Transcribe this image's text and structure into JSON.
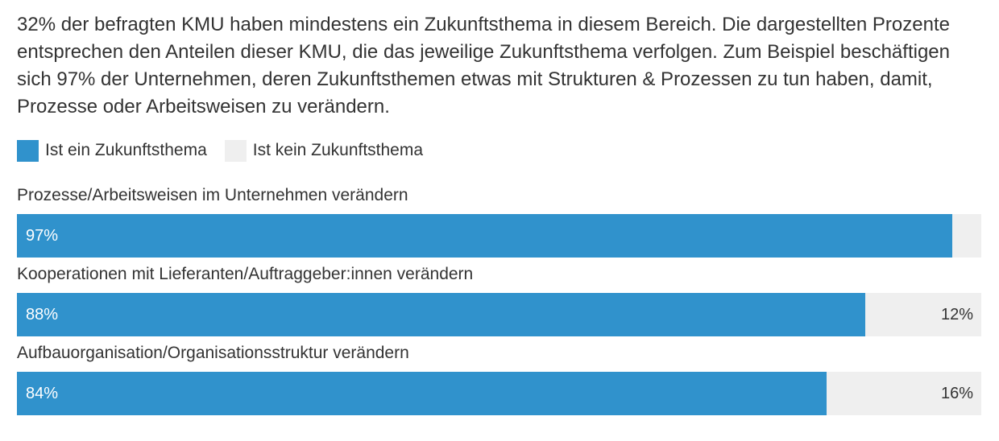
{
  "subtitle": "32% der befragten KMU haben mindestens ein Zukunftsthema in diesem Bereich. Die dargestellten Prozente entsprechen den Anteilen dieser KMU, die das jeweilige Zukunftsthema verfolgen. Zum Beispiel beschäftigen sich 97% der Unternehmen, deren Zukunftsthemen etwas mit Strukturen & Prozessen zu tun haben, damit, Prozesse oder Arbeitsweisen zu verändern.",
  "colors": {
    "yes": "#3092cc",
    "no": "#efefef",
    "text": "#333333"
  },
  "chart_data": {
    "type": "bar",
    "orientation": "horizontal",
    "stacked": true,
    "normalized_percent": true,
    "title": "",
    "subtitle": "32% der befragten KMU haben mindestens ein Zukunftsthema in diesem Bereich. Die dargestellten Prozente entsprechen den Anteilen dieser KMU, die das jeweilige Zukunftsthema verfolgen. Zum Beispiel beschäftigen sich 97% der Unternehmen, deren Zukunftsthemen etwas mit Strukturen & Prozessen zu tun haben, damit, Prozesse oder Arbeitsweisen zu verändern.",
    "xlabel": "",
    "ylabel": "",
    "xlim": [
      0,
      100
    ],
    "grid": false,
    "legend_position": "top-left",
    "categories": [
      "Prozesse/Arbeitsweisen im Unternehmen verändern",
      "Kooperationen mit Lieferanten/Auftraggeber:innen verändern",
      "Aufbauorganisation/Organisationsstruktur verändern"
    ],
    "series": [
      {
        "name": "Ist ein Zukunftsthema",
        "color": "#3092cc",
        "values": [
          97,
          88,
          84
        ],
        "labels": [
          "97%",
          "88%",
          "84%"
        ]
      },
      {
        "name": "Ist kein Zukunftsthema",
        "color": "#efefef",
        "values": [
          3,
          12,
          16
        ],
        "labels": [
          "",
          "12%",
          "16%"
        ]
      }
    ]
  }
}
